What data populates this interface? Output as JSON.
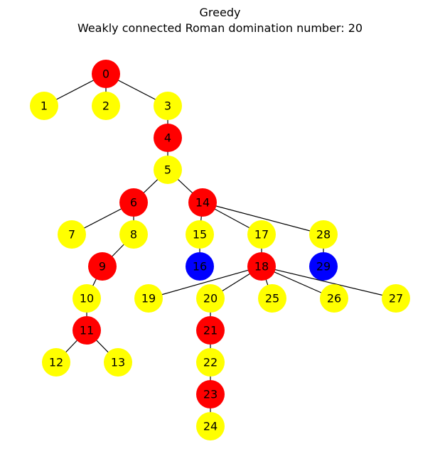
{
  "title": "Greedy",
  "subtitle": "Weakly connected Roman domination number: 20",
  "colors": {
    "red": "#ff0000",
    "yellow": "#ffff00",
    "blue": "#0000ff"
  },
  "graph": {
    "nodes": [
      {
        "id": "0",
        "color": "red"
      },
      {
        "id": "1",
        "color": "yellow"
      },
      {
        "id": "2",
        "color": "yellow"
      },
      {
        "id": "3",
        "color": "yellow"
      },
      {
        "id": "4",
        "color": "red"
      },
      {
        "id": "5",
        "color": "yellow"
      },
      {
        "id": "6",
        "color": "red"
      },
      {
        "id": "7",
        "color": "yellow"
      },
      {
        "id": "8",
        "color": "yellow"
      },
      {
        "id": "9",
        "color": "red"
      },
      {
        "id": "10",
        "color": "yellow"
      },
      {
        "id": "11",
        "color": "red"
      },
      {
        "id": "12",
        "color": "yellow"
      },
      {
        "id": "13",
        "color": "yellow"
      },
      {
        "id": "14",
        "color": "red"
      },
      {
        "id": "15",
        "color": "yellow"
      },
      {
        "id": "16",
        "color": "blue"
      },
      {
        "id": "17",
        "color": "yellow"
      },
      {
        "id": "18",
        "color": "red"
      },
      {
        "id": "19",
        "color": "yellow"
      },
      {
        "id": "20",
        "color": "yellow"
      },
      {
        "id": "21",
        "color": "red"
      },
      {
        "id": "22",
        "color": "yellow"
      },
      {
        "id": "23",
        "color": "red"
      },
      {
        "id": "24",
        "color": "yellow"
      },
      {
        "id": "25",
        "color": "yellow"
      },
      {
        "id": "26",
        "color": "yellow"
      },
      {
        "id": "27",
        "color": "yellow"
      },
      {
        "id": "28",
        "color": "yellow"
      },
      {
        "id": "29",
        "color": "blue"
      }
    ],
    "edges": [
      [
        "0",
        "1"
      ],
      [
        "0",
        "2"
      ],
      [
        "0",
        "3"
      ],
      [
        "3",
        "4"
      ],
      [
        "4",
        "5"
      ],
      [
        "5",
        "6"
      ],
      [
        "5",
        "14"
      ],
      [
        "6",
        "7"
      ],
      [
        "6",
        "8"
      ],
      [
        "8",
        "9"
      ],
      [
        "9",
        "10"
      ],
      [
        "10",
        "11"
      ],
      [
        "11",
        "12"
      ],
      [
        "11",
        "13"
      ],
      [
        "14",
        "15"
      ],
      [
        "14",
        "17"
      ],
      [
        "14",
        "28"
      ],
      [
        "15",
        "16"
      ],
      [
        "17",
        "18"
      ],
      [
        "28",
        "29"
      ],
      [
        "18",
        "19"
      ],
      [
        "18",
        "20"
      ],
      [
        "18",
        "25"
      ],
      [
        "18",
        "26"
      ],
      [
        "18",
        "27"
      ],
      [
        "20",
        "21"
      ],
      [
        "21",
        "22"
      ],
      [
        "22",
        "23"
      ],
      [
        "23",
        "24"
      ]
    ]
  }
}
